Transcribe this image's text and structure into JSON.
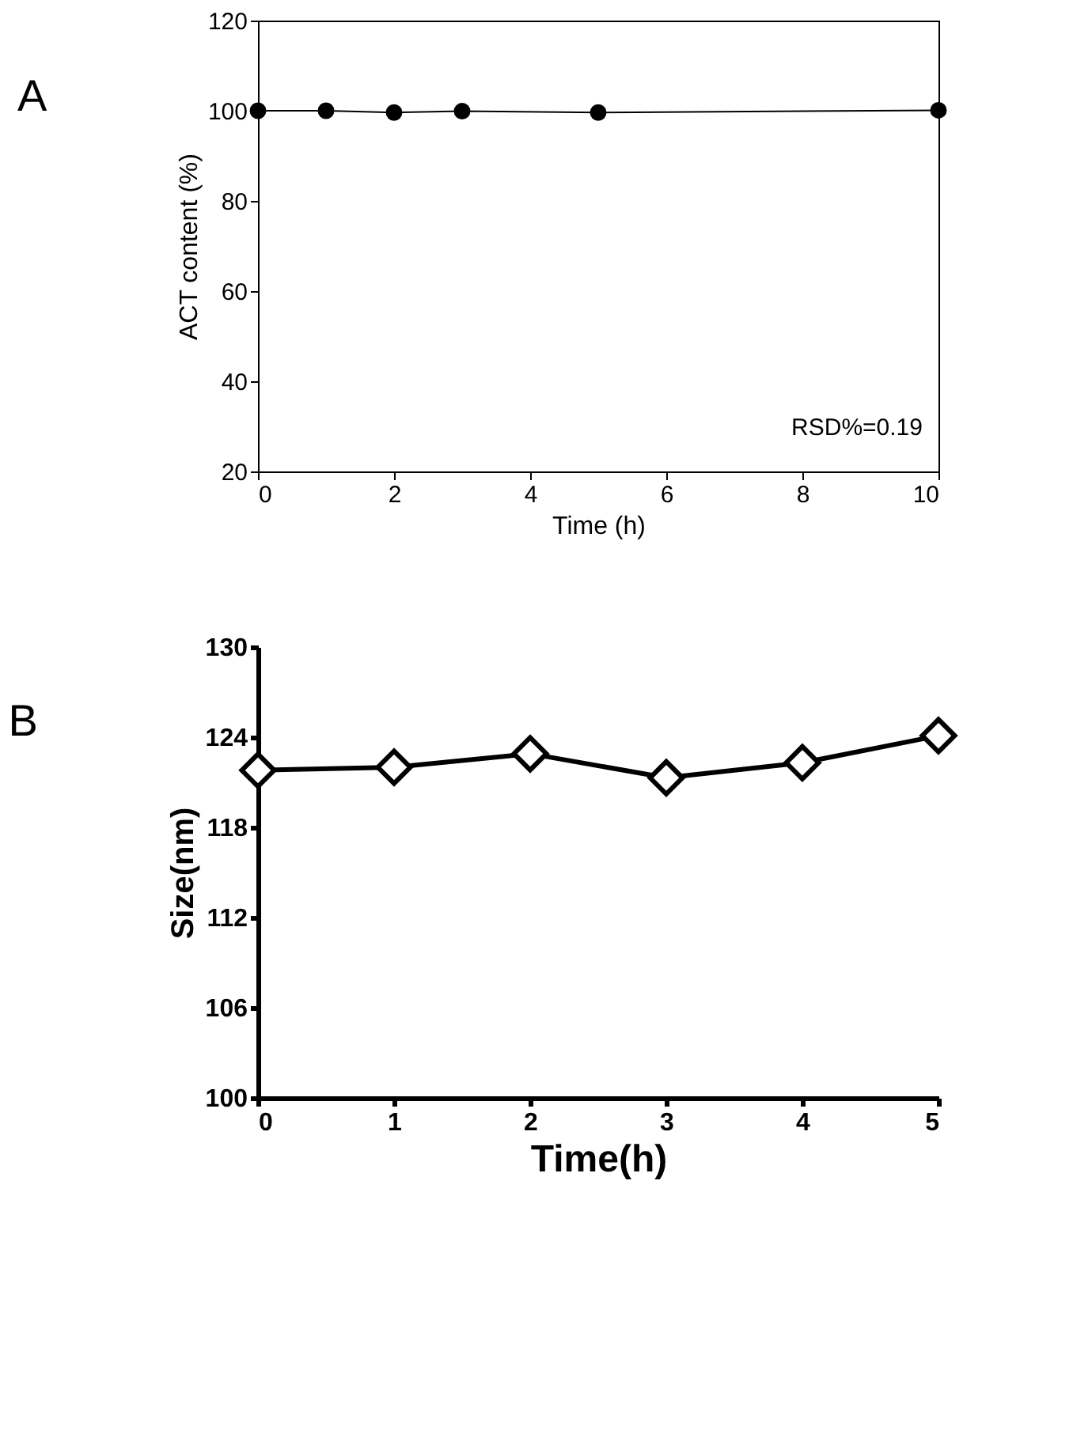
{
  "chart_data": [
    {
      "type": "line",
      "title": "A",
      "xlabel": "Time (h)",
      "ylabel": "ACT content (%)",
      "x": [
        0,
        1,
        2,
        3,
        5,
        10
      ],
      "series": [
        {
          "color": "#000000",
          "values": [
            100,
            100,
            99.6,
            99.9,
            99.6,
            100.1
          ]
        }
      ],
      "xlim": [
        0,
        10
      ],
      "xticks": [
        0,
        2,
        4,
        6,
        8,
        10
      ],
      "ylim": [
        20,
        120
      ],
      "yticks": [
        20,
        40,
        60,
        80,
        100,
        120
      ],
      "marker": "circle",
      "line_style": "solid",
      "grid": false,
      "annotations": [
        "RSD%=0.19"
      ]
    },
    {
      "type": "line",
      "title": "B",
      "xlabel": "Time(h)",
      "ylabel": "Size(nm)",
      "x": [
        0,
        1,
        2,
        3,
        4,
        5
      ],
      "series": [
        {
          "color": "#000000",
          "values": [
            121.8,
            122.0,
            122.9,
            121.3,
            122.3,
            124.1
          ]
        }
      ],
      "xlim": [
        0,
        5
      ],
      "xticks": [
        {
          "value": 0,
          "label": "0"
        },
        {
          "value": 1,
          "label": "1"
        },
        {
          "value": 2,
          "label": "2"
        },
        {
          "value": 3,
          "label": "3"
        },
        {
          "value": 4,
          "label": "4"
        },
        {
          "value": 5,
          "label": "5"
        }
      ],
      "ylim": [
        100,
        130
      ],
      "yticks": [
        100,
        106,
        112,
        118,
        124,
        130
      ],
      "marker": "diamond",
      "line_style": "solid",
      "grid": false
    }
  ]
}
